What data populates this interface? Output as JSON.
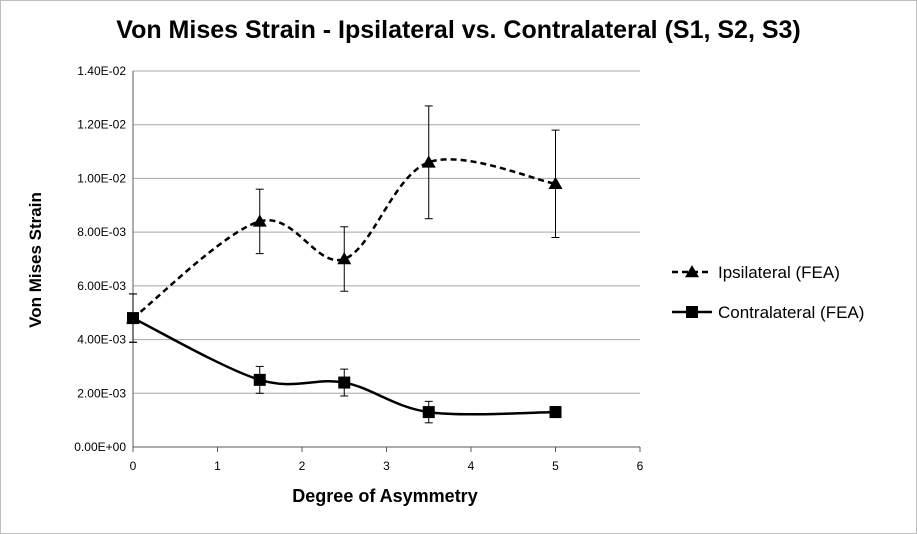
{
  "chart_data": {
    "type": "line",
    "title": "Von Mises Strain - Ipsilateral vs. Contralateral (S1, S2, S3)",
    "xlabel": "Degree of Asymmetry",
    "ylabel": "Von Mises Strain",
    "xlim": [
      0,
      6
    ],
    "ylim": [
      0,
      0.014
    ],
    "x_ticks": [
      "0",
      "1",
      "2",
      "3",
      "4",
      "5",
      "6"
    ],
    "y_ticks": [
      "0.00E+00",
      "2.00E-03",
      "4.00E-03",
      "6.00E-03",
      "8.00E-03",
      "1.00E-02",
      "1.20E-02",
      "1.40E-02"
    ],
    "grid": "horizontal",
    "legend_position": "right",
    "series": [
      {
        "name": "Ipsilateral (FEA)",
        "marker": "triangle",
        "line_style": "dashed",
        "color": "#000000",
        "x": [
          0,
          1.5,
          2.5,
          3.5,
          5
        ],
        "y": [
          0.0048,
          0.0084,
          0.007,
          0.0106,
          0.0098
        ],
        "error": [
          0.0009,
          0.0012,
          0.0012,
          0.0021,
          0.002
        ]
      },
      {
        "name": "Contralateral (FEA)",
        "marker": "square",
        "line_style": "solid",
        "color": "#000000",
        "x": [
          0,
          1.5,
          2.5,
          3.5,
          5
        ],
        "y": [
          0.0048,
          0.0025,
          0.0024,
          0.0013,
          0.0013
        ],
        "error": [
          0.0009,
          0.0005,
          0.0005,
          0.0004,
          0.0002
        ]
      }
    ]
  }
}
